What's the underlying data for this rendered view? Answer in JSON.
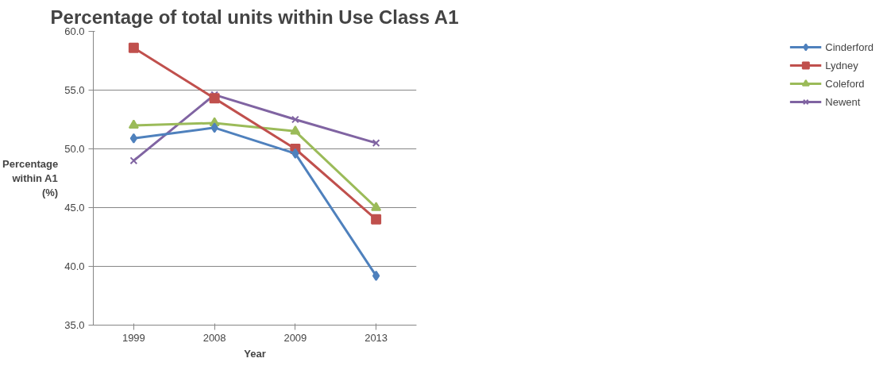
{
  "chart_data": {
    "type": "line",
    "title": "Percentage of total units within Use Class A1",
    "xlabel": "Year",
    "ylabel": "Percentage within A1 (%)",
    "categories": [
      "1999",
      "2008",
      "2009",
      "2013"
    ],
    "series": [
      {
        "name": "Cinderford",
        "color": "#4f81bd",
        "marker": "diamond",
        "values": [
          50.9,
          51.8,
          49.6,
          39.2
        ]
      },
      {
        "name": "Lydney",
        "color": "#c0504d",
        "marker": "square",
        "values": [
          58.6,
          54.3,
          50.0,
          44.0
        ]
      },
      {
        "name": "Coleford",
        "color": "#9bbb59",
        "marker": "triangle",
        "values": [
          52.0,
          52.2,
          51.5,
          45.0
        ]
      },
      {
        "name": "Newent",
        "color": "#8064a2",
        "marker": "cross",
        "values": [
          49.0,
          54.6,
          52.5,
          50.5
        ]
      }
    ],
    "ylim": [
      35,
      60
    ],
    "yticks": [
      {
        "value": 35,
        "label": "35.0"
      },
      {
        "value": 40,
        "label": "40.0"
      },
      {
        "value": 45,
        "label": "45.0"
      },
      {
        "value": 50,
        "label": "50.0"
      },
      {
        "value": 55,
        "label": "55.0"
      },
      {
        "value": 60,
        "label": "60.0"
      }
    ],
    "grid": "y",
    "legend": "right",
    "line_style": "solid"
  }
}
